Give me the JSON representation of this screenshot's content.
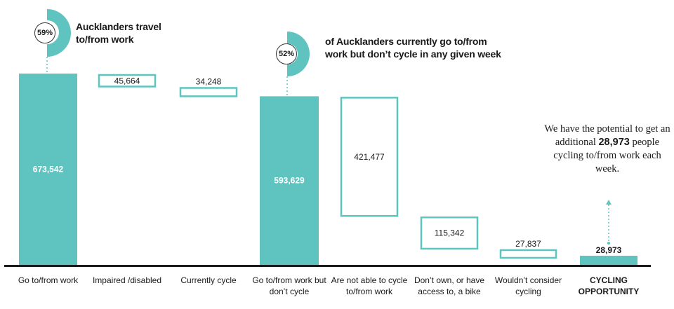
{
  "chart_data": {
    "type": "waterfall",
    "colors": {
      "accent": "#5fc4c0",
      "axis": "#1a1a1a",
      "text": "#1a1a1a"
    },
    "categories": [
      [
        "Go to/from work"
      ],
      [
        "Impaired /disabled"
      ],
      [
        "Currently cycle"
      ],
      [
        "Go to/from work but",
        "don’t cycle"
      ],
      [
        "Are not able to cycle",
        "to/from work"
      ],
      [
        "Don’t own, or have",
        "access to, a bike"
      ],
      [
        "Wouldn’t consider",
        "cycling"
      ],
      [
        "CYCLING",
        "OPPORTUNITY"
      ]
    ],
    "values": [
      673542,
      45664,
      34248,
      593629,
      421477,
      115342,
      27837,
      28973
    ],
    "value_labels": [
      "673,542",
      "45,664",
      "34,248",
      "593,629",
      "421,477",
      "115,342",
      "27,837",
      "28,973"
    ],
    "kinds": [
      "total",
      "decrease",
      "decrease",
      "total",
      "decrease",
      "decrease",
      "decrease",
      "total"
    ],
    "ylim": [
      0,
      673542
    ]
  },
  "callouts": {
    "pct1": "59%",
    "text1": "Aucklanders travel to/from work",
    "pct2": "52%",
    "text2": "of Aucklanders currently go to/from work but don’t cycle in any given week"
  },
  "potential": {
    "before": "We have the potential to get an additional ",
    "number": "28,973",
    "after": " people cycling to/from work each week."
  }
}
